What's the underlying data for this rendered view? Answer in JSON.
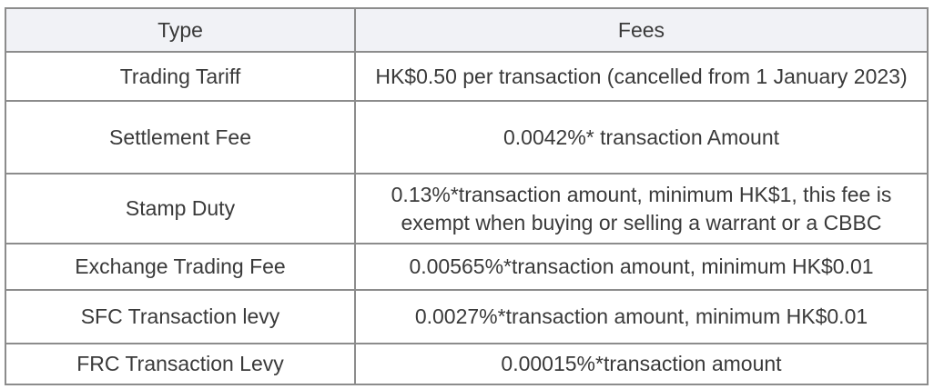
{
  "table": {
    "columns": [
      {
        "label": "Type"
      },
      {
        "label": "Fees"
      }
    ],
    "rows": [
      {
        "type": "Trading Tariff",
        "fee": "HK$0.50 per transaction (cancelled from 1 January 2023)"
      },
      {
        "type": "Settlement Fee",
        "fee": "0.0042%* transaction Amount"
      },
      {
        "type": "Stamp Duty",
        "fee": "0.13%*transaction amount, minimum HK$1, this fee is\nexempt when buying or selling a warrant or a CBBC"
      },
      {
        "type": "Exchange Trading Fee",
        "fee": "0.00565%*transaction amount, minimum HK$0.01"
      },
      {
        "type": "SFC Transaction levy",
        "fee": "0.0027%*transaction amount, minimum HK$0.01"
      },
      {
        "type": "FRC Transaction Levy",
        "fee": "0.00015%*transaction amount"
      }
    ],
    "colors": {
      "border": "#8c8c8c",
      "header_bg": "#f1f2f6",
      "row_bg": "#ffffff",
      "text": "#3a3a3a"
    }
  }
}
